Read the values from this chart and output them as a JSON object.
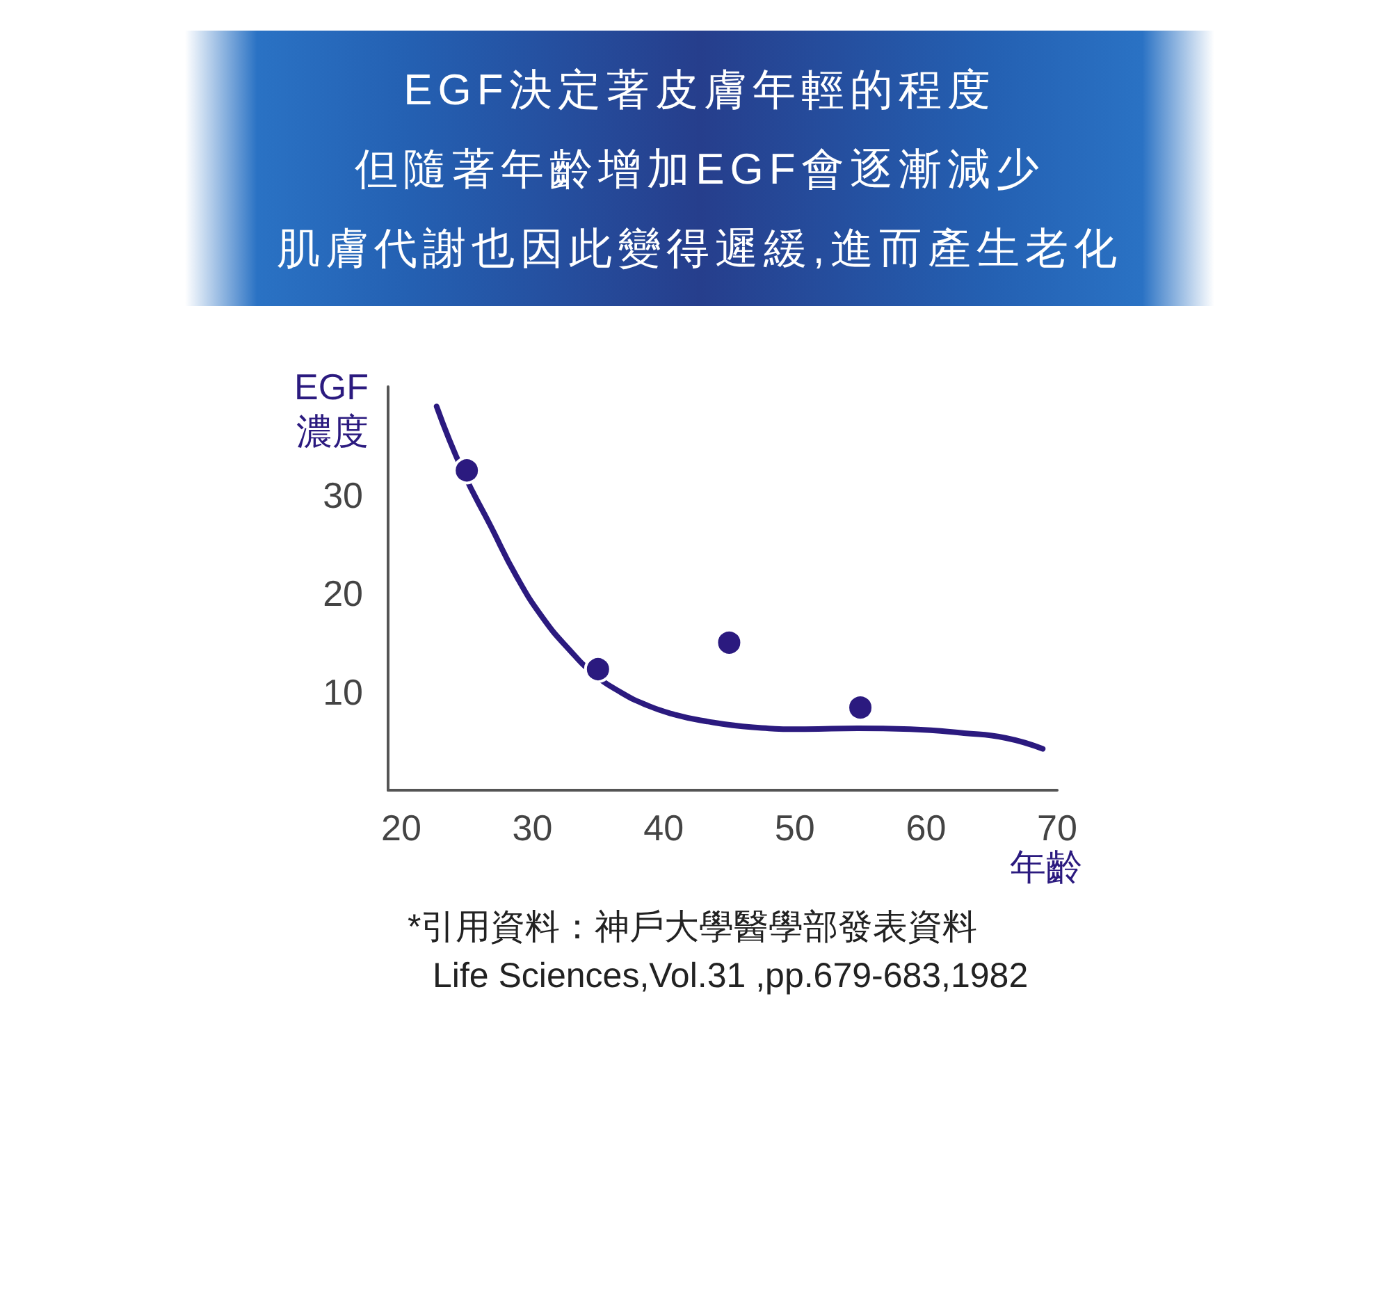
{
  "chart_data": {
    "type": "scatter",
    "title": "EGF決定著皮膚年輕的程度但隨著年齡增加EGF會逐漸減少肌膚代謝也因此變得遲緩,進而產生老化",
    "xlabel": "年齡",
    "ylabel": "EGF\n濃度",
    "annotations": [
      "*引用資料：神戶大學醫學部發表資料",
      "Life Sciences,Vol.31 ,pp.679-683,1982"
    ],
    "xlim": [
      19,
      70
    ],
    "xticks": [
      20,
      30,
      40,
      50,
      60,
      70
    ],
    "ylim": [
      0,
      41
    ],
    "yticks": [
      10,
      20,
      30
    ],
    "grid": false,
    "series": [
      {
        "type": "line",
        "color": "#2b1a7f",
        "marker": "none",
        "x": [
          22.7,
          24.7,
          26.8,
          28.8,
          30.8,
          32.8,
          34.7,
          36.8,
          38.8,
          40.8,
          42.8,
          46.8,
          50.8,
          54.8,
          58.8,
          62.9,
          66.1,
          68.9
        ],
        "values": [
          39,
          32.4,
          26.9,
          21.7,
          17.5,
          14.3,
          11.8,
          9.9,
          8.6,
          7.7,
          7.1,
          6.4,
          6.2,
          6.3,
          6.2,
          5.8,
          5.3,
          4.2
        ]
      },
      {
        "color": "#2b1a7f",
        "marker": "circle",
        "x": [
          25,
          35,
          45,
          55
        ],
        "values": [
          32.5,
          12.3,
          15,
          8.4
        ]
      }
    ]
  }
}
